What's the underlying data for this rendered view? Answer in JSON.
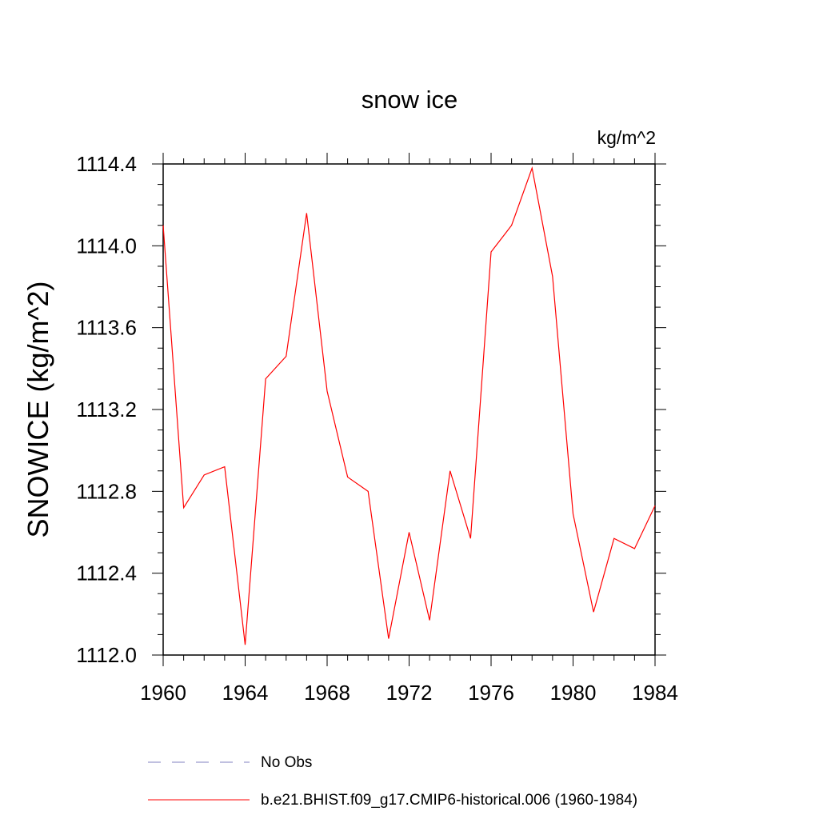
{
  "chart_data": {
    "type": "line",
    "title": "snow ice",
    "units": "kg/m^2",
    "xlabel": "",
    "ylabel": "SNOWICE  (kg/m^2)",
    "xlim": [
      1960,
      1984
    ],
    "ylim": [
      1112.0,
      1114.4
    ],
    "x_ticks": [
      1960,
      1964,
      1968,
      1972,
      1976,
      1980,
      1984
    ],
    "x_tick_labels": [
      "1960",
      "1964",
      "1968",
      "1972",
      "1976",
      "1980",
      "1984"
    ],
    "y_ticks": [
      1112.0,
      1112.4,
      1112.8,
      1113.2,
      1113.6,
      1114.0,
      1114.4
    ],
    "y_tick_labels": [
      "1112.0",
      "1112.4",
      "1112.8",
      "1113.2",
      "1113.6",
      "1114.0",
      "1114.4"
    ],
    "x": [
      1960,
      1961,
      1962,
      1963,
      1964,
      1965,
      1966,
      1967,
      1968,
      1969,
      1970,
      1971,
      1972,
      1973,
      1974,
      1975,
      1976,
      1977,
      1978,
      1979,
      1980,
      1981,
      1982,
      1983,
      1984
    ],
    "series": [
      {
        "name": "b.e21.BHIST.f09_g17.CMIP6-historical.006 (1960-1984)",
        "color": "#ff0000",
        "style": "solid",
        "values": [
          1114.1,
          1112.72,
          1112.88,
          1112.92,
          1112.05,
          1113.35,
          1113.46,
          1114.16,
          1113.29,
          1112.87,
          1112.8,
          1112.08,
          1112.6,
          1112.17,
          1112.9,
          1112.57,
          1113.97,
          1114.1,
          1114.38,
          1113.85,
          1112.69,
          1112.21,
          1112.57,
          1112.52,
          1112.73
        ]
      }
    ],
    "legend": [
      {
        "label": "No Obs",
        "color": "#8080c0",
        "style": "dashed"
      },
      {
        "label": "b.e21.BHIST.f09_g17.CMIP6-historical.006 (1960-1984)",
        "color": "#ff0000",
        "style": "solid"
      }
    ],
    "legend_position": "bottom"
  }
}
